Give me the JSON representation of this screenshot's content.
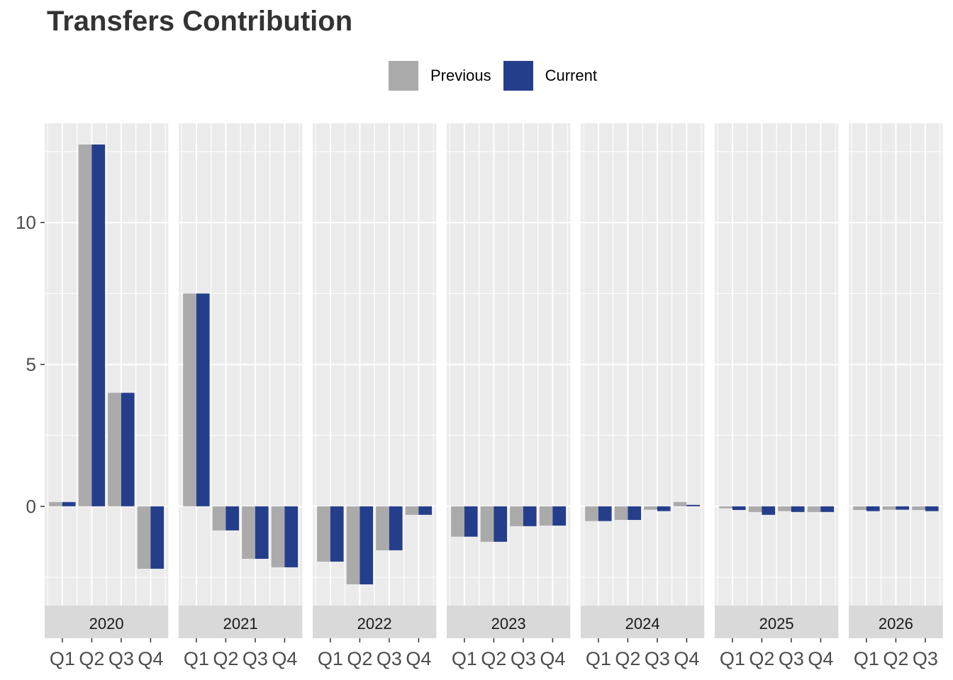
{
  "chart_data": {
    "type": "bar",
    "title": "Transfers Contribution",
    "xlabel": "",
    "ylabel": "",
    "ylim": [
      -3.5,
      13.5
    ],
    "y_ticks": [
      0,
      5,
      10
    ],
    "grid": true,
    "legend": {
      "position": "top",
      "entries": [
        "Previous",
        "Current"
      ]
    },
    "series_colors": {
      "Previous": "#aaaaaa",
      "Current": "#253e8c"
    },
    "facets": [
      {
        "label": "2020",
        "categories": [
          "Q1",
          "Q2",
          "Q3",
          "Q4"
        ],
        "series": [
          {
            "name": "Previous",
            "values": [
              0.15,
              12.75,
              4.0,
              -2.2
            ]
          },
          {
            "name": "Current",
            "values": [
              0.15,
              12.75,
              4.0,
              -2.2
            ]
          }
        ]
      },
      {
        "label": "2021",
        "categories": [
          "Q1",
          "Q2",
          "Q3",
          "Q4"
        ],
        "series": [
          {
            "name": "Previous",
            "values": [
              7.5,
              -0.85,
              -1.85,
              -2.15
            ]
          },
          {
            "name": "Current",
            "values": [
              7.5,
              -0.85,
              -1.85,
              -2.15
            ]
          }
        ]
      },
      {
        "label": "2022",
        "categories": [
          "Q1",
          "Q2",
          "Q3",
          "Q4"
        ],
        "series": [
          {
            "name": "Previous",
            "values": [
              -1.95,
              -2.75,
              -1.55,
              -0.3
            ]
          },
          {
            "name": "Current",
            "values": [
              -1.95,
              -2.75,
              -1.55,
              -0.3
            ]
          }
        ]
      },
      {
        "label": "2023",
        "categories": [
          "Q1",
          "Q2",
          "Q3",
          "Q4"
        ],
        "series": [
          {
            "name": "Previous",
            "values": [
              -1.07,
              -1.25,
              -0.7,
              -0.68
            ]
          },
          {
            "name": "Current",
            "values": [
              -1.07,
              -1.25,
              -0.7,
              -0.68
            ]
          }
        ]
      },
      {
        "label": "2024",
        "categories": [
          "Q1",
          "Q2",
          "Q3",
          "Q4"
        ],
        "series": [
          {
            "name": "Previous",
            "values": [
              -0.52,
              -0.48,
              -0.12,
              0.15
            ]
          },
          {
            "name": "Current",
            "values": [
              -0.52,
              -0.48,
              -0.17,
              0.05
            ]
          }
        ]
      },
      {
        "label": "2025",
        "categories": [
          "Q1",
          "Q2",
          "Q3",
          "Q4"
        ],
        "series": [
          {
            "name": "Previous",
            "values": [
              -0.07,
              -0.2,
              -0.17,
              -0.2
            ]
          },
          {
            "name": "Current",
            "values": [
              -0.13,
              -0.3,
              -0.2,
              -0.2
            ]
          }
        ]
      },
      {
        "label": "2026",
        "categories": [
          "Q1",
          "Q2",
          "Q3"
        ],
        "series": [
          {
            "name": "Previous",
            "values": [
              -0.13,
              -0.12,
              -0.13
            ]
          },
          {
            "name": "Current",
            "values": [
              -0.17,
              -0.12,
              -0.17
            ]
          }
        ]
      }
    ]
  }
}
